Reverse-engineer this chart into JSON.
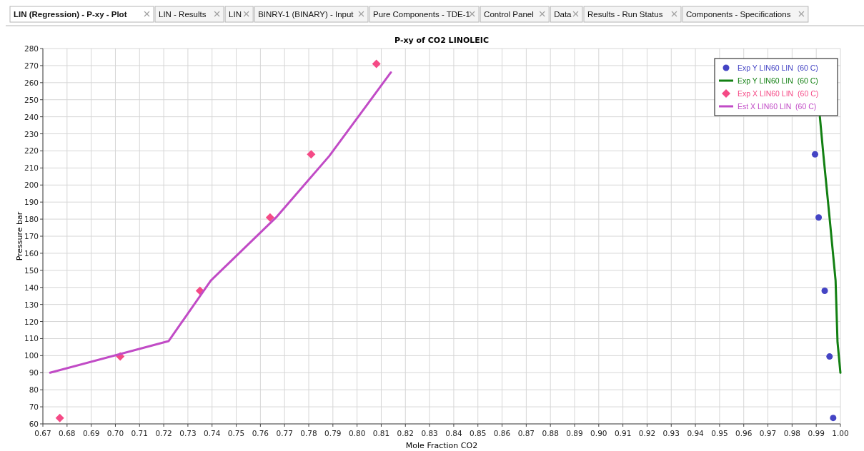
{
  "chart_data": {
    "type": "scatter",
    "title": "P-xy of CO2 LINOLEIC",
    "xlabel": "Mole Fraction CO2",
    "ylabel": "Pressure bar",
    "annotations": [
      "LIN (Regression) - P-xy - Plot",
      "LIN - Results",
      "LIN",
      "BINRY-1 (BINARY) - Input",
      "Pure Components - TDE-1",
      "Control Panel",
      "Data",
      "Results - Run Status",
      "Components - Specifications"
    ],
    "xlim": [
      0.67,
      1.0
    ],
    "xticks": [
      {
        "value": 0.67,
        "label": "0.67"
      },
      {
        "value": 0.68,
        "label": "0.68"
      },
      {
        "value": 0.69,
        "label": "0.69"
      },
      {
        "value": 0.7,
        "label": "0.70"
      },
      {
        "value": 0.71,
        "label": "0.71"
      },
      {
        "value": 0.72,
        "label": "0.72"
      },
      {
        "value": 0.73,
        "label": "0.73"
      },
      {
        "value": 0.74,
        "label": "0.74"
      },
      {
        "value": 0.75,
        "label": "0.75"
      },
      {
        "value": 0.76,
        "label": "0.76"
      },
      {
        "value": 0.77,
        "label": "0.77"
      },
      {
        "value": 0.78,
        "label": "0.78"
      },
      {
        "value": 0.79,
        "label": "0.79"
      },
      {
        "value": 0.8,
        "label": "0.80"
      },
      {
        "value": 0.81,
        "label": "0.81"
      },
      {
        "value": 0.82,
        "label": "0.82"
      },
      {
        "value": 0.83,
        "label": "0.83"
      },
      {
        "value": 0.84,
        "label": "0.84"
      },
      {
        "value": 0.85,
        "label": "0.85"
      },
      {
        "value": 0.86,
        "label": "0.86"
      },
      {
        "value": 0.87,
        "label": "0.87"
      },
      {
        "value": 0.88,
        "label": "0.88"
      },
      {
        "value": 0.89,
        "label": "0.89"
      },
      {
        "value": 0.9,
        "label": "0.90"
      },
      {
        "value": 0.91,
        "label": "0.91"
      },
      {
        "value": 0.92,
        "label": "0.92"
      },
      {
        "value": 0.93,
        "label": "0.93"
      },
      {
        "value": 0.94,
        "label": "0.94"
      },
      {
        "value": 0.95,
        "label": "0.95"
      },
      {
        "value": 0.96,
        "label": "0.96"
      },
      {
        "value": 0.97,
        "label": "0.97"
      },
      {
        "value": 0.98,
        "label": "0.98"
      },
      {
        "value": 0.99,
        "label": "0.99"
      },
      {
        "value": 1.0,
        "label": "1.00"
      }
    ],
    "ylim": [
      60,
      280
    ],
    "yticks": [
      60,
      70,
      80,
      90,
      100,
      110,
      120,
      130,
      140,
      150,
      160,
      170,
      180,
      190,
      200,
      210,
      220,
      230,
      240,
      250,
      260,
      270,
      280
    ],
    "grid": true,
    "legend": "top right",
    "series": [
      {
        "name": "Exp Y LIN60 LIN  (60 C)",
        "type": "scatter",
        "marker": "circle",
        "color": "#4444c4",
        "x": [
          0.9895,
          0.991,
          0.9935,
          0.9955,
          0.997
        ],
        "values": [
          218,
          181,
          138,
          99.5,
          63.5
        ]
      },
      {
        "name": "Exp Y LIN60 LIN  (60 C)",
        "type": "line",
        "marker": "none",
        "color": "#138013",
        "x": [
          1.0,
          0.9988,
          0.998,
          0.9955,
          0.993,
          0.9915
        ],
        "values": [
          90,
          108,
          144,
          181,
          217,
          240
        ]
      },
      {
        "name": "Exp X LIN60 LIN  (60 C)",
        "type": "scatter",
        "marker": "diamond",
        "color": "#f54a86",
        "x": [
          0.677,
          0.702,
          0.735,
          0.764,
          0.781,
          0.808
        ],
        "values": [
          63.5,
          99.5,
          138,
          181,
          218,
          271
        ]
      },
      {
        "name": "Est X LIN60 LIN  (60 C)",
        "type": "line",
        "marker": "none",
        "color": "#c14bc6",
        "x": [
          0.673,
          0.722,
          0.7395,
          0.7665,
          0.7885,
          0.814
        ],
        "values": [
          90,
          108.5,
          144,
          181,
          217,
          266
        ]
      }
    ]
  }
}
